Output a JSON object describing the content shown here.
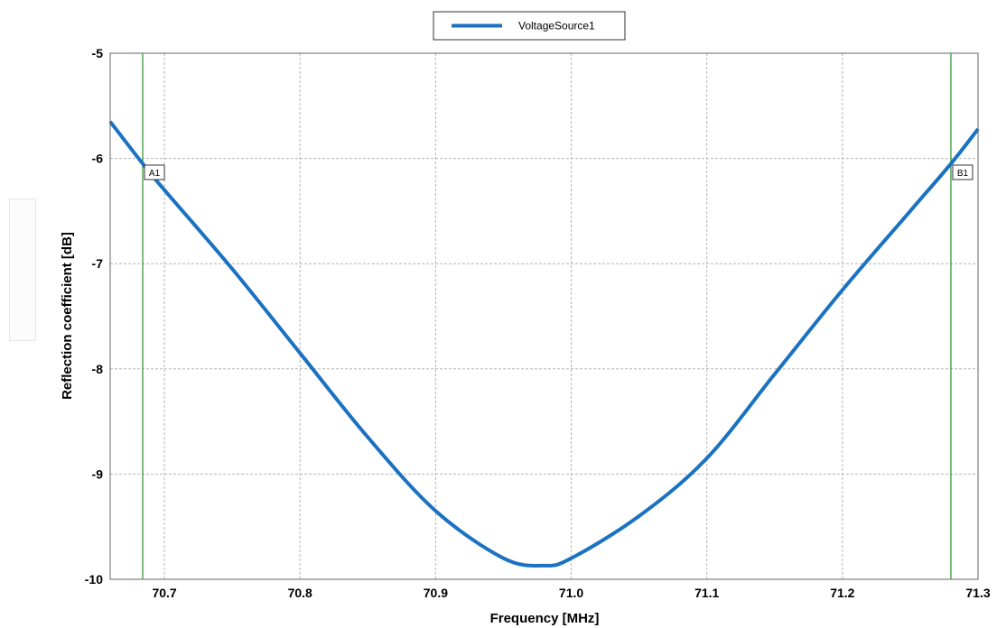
{
  "chart_data": {
    "type": "line",
    "title": "",
    "xlabel": "Frequency [MHz]",
    "ylabel": "Reflection coefficient [dB]",
    "xlim": [
      70.66,
      71.3
    ],
    "ylim": [
      -10,
      -5
    ],
    "xticks": [
      70.7,
      70.8,
      70.9,
      71.0,
      71.1,
      71.2,
      71.3
    ],
    "xtick_labels": [
      "70.7",
      "70.8",
      "70.9",
      "71.0",
      "71.1",
      "71.2",
      "71.3"
    ],
    "yticks": [
      -5,
      -6,
      -7,
      -8,
      -9,
      -10
    ],
    "ytick_labels": [
      "-5",
      "-6",
      "-7",
      "-8",
      "-9",
      "-10"
    ],
    "grid": true,
    "legend_position": "top-center",
    "series": [
      {
        "name": "VoltageSource1",
        "color": "#1a72c0",
        "x": [
          70.66,
          70.684,
          70.7,
          70.75,
          70.8,
          70.85,
          70.9,
          70.95,
          70.98,
          71.0,
          71.05,
          71.1,
          71.15,
          71.2,
          71.25,
          71.28,
          71.3
        ],
        "y": [
          -5.65,
          -6.05,
          -6.3,
          -7.05,
          -7.85,
          -8.65,
          -9.35,
          -9.8,
          -9.87,
          -9.8,
          -9.4,
          -8.85,
          -8.05,
          -7.25,
          -6.5,
          -6.05,
          -5.72
        ]
      }
    ],
    "markers": [
      {
        "label": "A1",
        "x": 70.684,
        "color": "#3a9a3a"
      },
      {
        "label": "B1",
        "x": 71.28,
        "color": "#3a9a3a"
      }
    ]
  }
}
